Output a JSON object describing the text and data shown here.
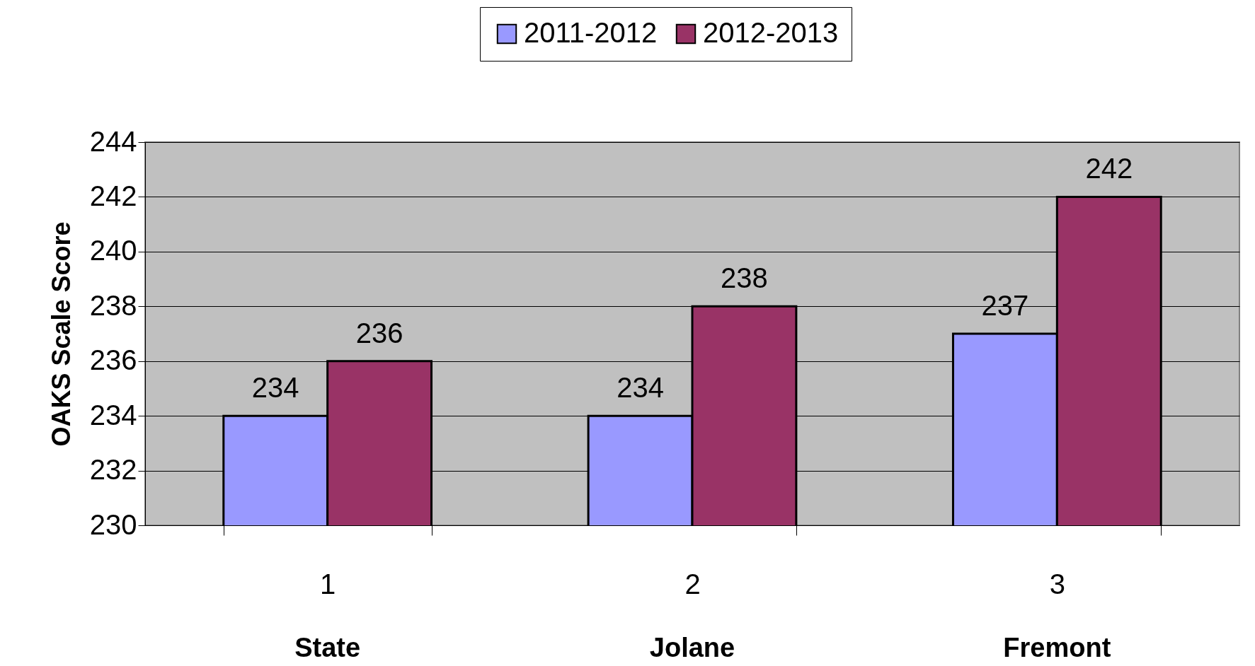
{
  "chart_data": {
    "type": "bar",
    "ylabel": "OAKS Scale Score",
    "categories": [
      "1",
      "2",
      "3"
    ],
    "series": [
      {
        "name": "2011-2012",
        "color": "#9999ff",
        "values": [
          234,
          234,
          237
        ]
      },
      {
        "name": "2012-2013",
        "color": "#993366",
        "values": [
          236,
          238,
          242
        ]
      }
    ],
    "ylim": [
      230,
      244
    ],
    "yticks": [
      230,
      232,
      234,
      236,
      238,
      240,
      242,
      244
    ],
    "grid": "y",
    "legend": "top",
    "data_labels": true,
    "annotations": [
      {
        "text": "State",
        "x": "1"
      },
      {
        "text": "Jolane",
        "x": "2"
      },
      {
        "text": "Fremont",
        "x": "3"
      }
    ]
  }
}
